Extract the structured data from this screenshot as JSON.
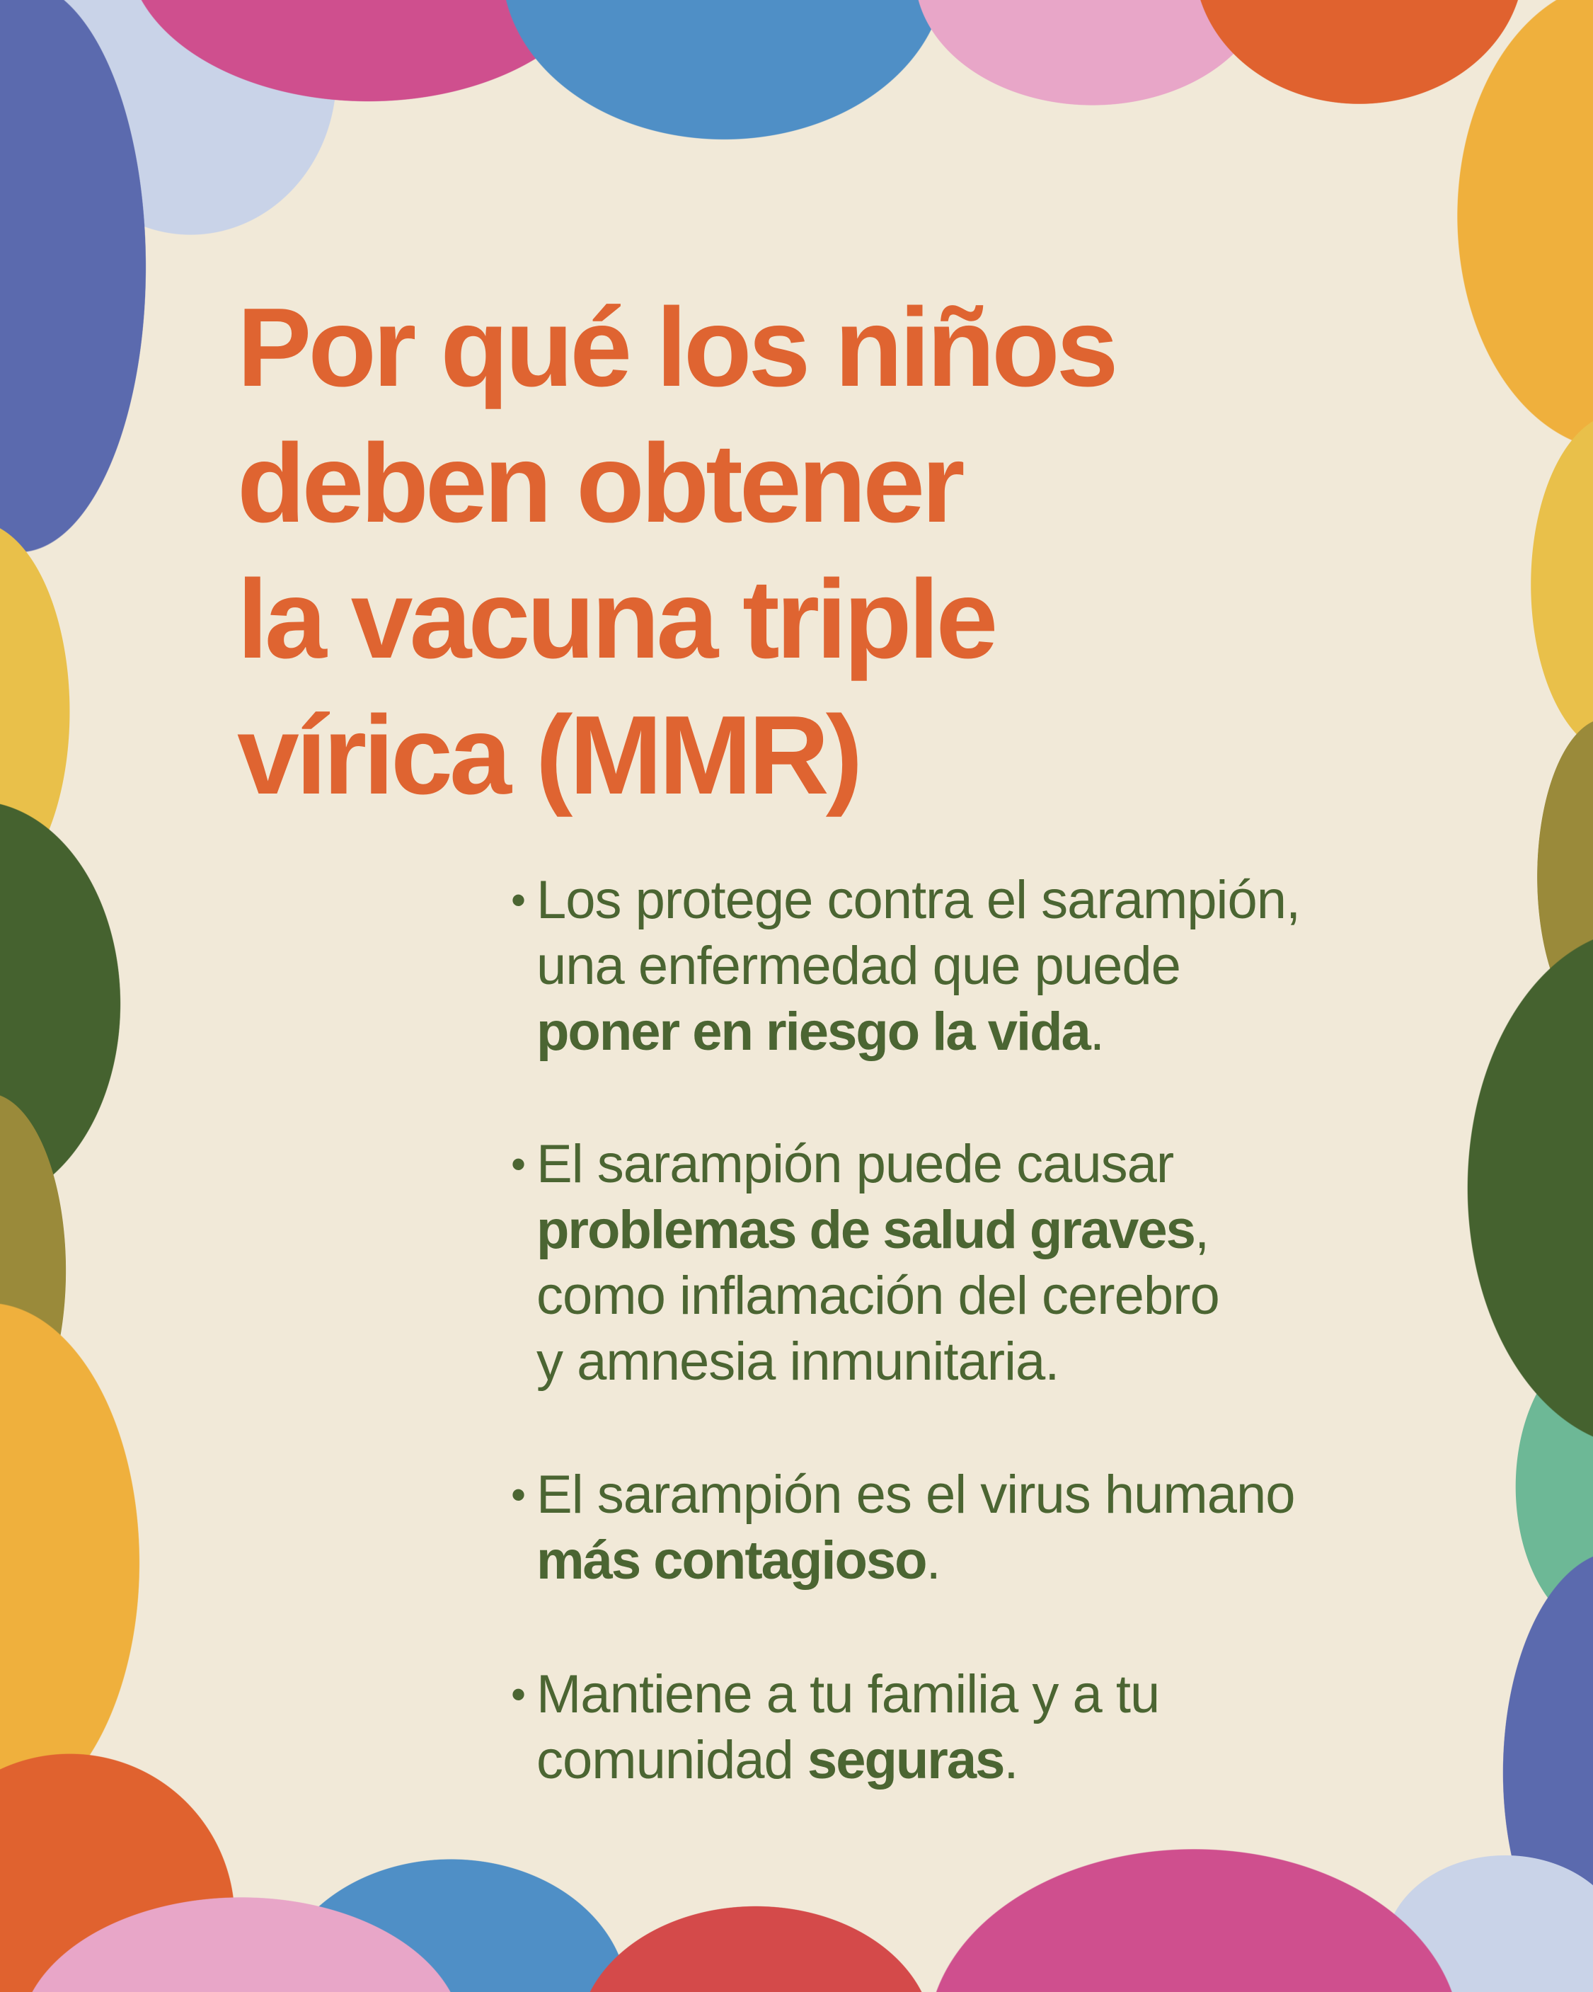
{
  "colors": {
    "background": "#f1e9d8",
    "title": "#df6431",
    "body_text": "#4b6532"
  },
  "title_lines": [
    "Por qué los niños",
    "deben obtener",
    "la vacuna triple",
    "vírica (MMR)"
  ],
  "bullets": [
    {
      "lines": [
        {
          "pre": "Los protege contra el sarampión,",
          "bold": "",
          "post": ""
        },
        {
          "pre": "una enfermedad que puede",
          "bold": "",
          "post": ""
        },
        {
          "pre": "",
          "bold": "poner en riesgo la vida",
          "post": "."
        }
      ]
    },
    {
      "lines": [
        {
          "pre": "El sarampión puede causar",
          "bold": "",
          "post": ""
        },
        {
          "pre": "",
          "bold": "problemas de salud graves",
          "post": ","
        },
        {
          "pre": "como inflamación del cerebro",
          "bold": "",
          "post": ""
        },
        {
          "pre": "y amnesia inmunitaria.",
          "bold": "",
          "post": ""
        }
      ]
    },
    {
      "lines": [
        {
          "pre": "El sarampión es el virus humano",
          "bold": "",
          "post": ""
        },
        {
          "pre": "",
          "bold": "más contagioso",
          "post": "."
        }
      ]
    },
    {
      "lines": [
        {
          "pre": "Mantiene a tu familia y a tu",
          "bold": "",
          "post": ""
        },
        {
          "pre": "comunidad ",
          "bold": "seguras",
          "post": "."
        }
      ]
    }
  ],
  "bullet_glyph": "•"
}
